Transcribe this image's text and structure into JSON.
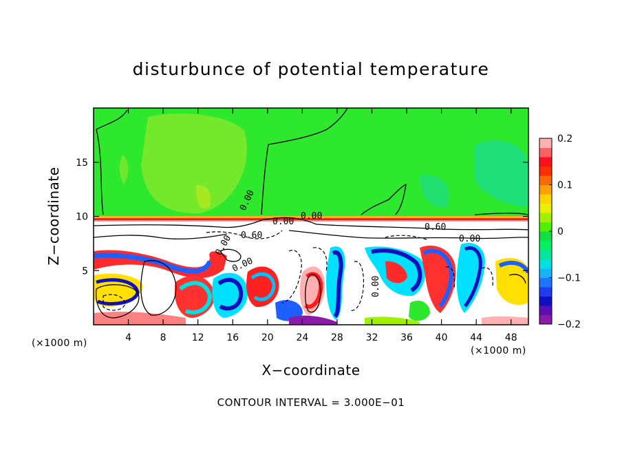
{
  "chart_data": {
    "type": "heatmap",
    "title": "disturbunce of potential temperature",
    "xlabel": "X−coordinate",
    "ylabel": "Z−coordinate",
    "x_unit": "(×1000 m)",
    "footnote": "CONTOUR INTERVAL = 3.000E−01",
    "xlim": [
      0,
      50
    ],
    "ylim": [
      0,
      20
    ],
    "x_ticks": [
      4,
      8,
      12,
      16,
      20,
      24,
      28,
      32,
      36,
      40,
      44,
      48
    ],
    "y_ticks": [
      5,
      10,
      15
    ],
    "colorbar": {
      "range": [
        -0.2,
        0.2
      ],
      "tick_labels": [
        "0.2",
        "0.1",
        "0",
        "−0.1",
        "−0.2"
      ],
      "tick_values": [
        0.2,
        0.1,
        0,
        -0.1,
        -0.2
      ],
      "colors": [
        "#8b1aa8",
        "#5a0fb5",
        "#1010c0",
        "#1e3cf0",
        "#1e78ff",
        "#14b4ff",
        "#00e0e0",
        "#00e6a0",
        "#00f060",
        "#10e040",
        "#50f000",
        "#a0f000",
        "#e8f000",
        "#ffd200",
        "#ffa000",
        "#ff6a00",
        "#ff3000",
        "#ff1020",
        "#ff6060",
        "#ffb0b0"
      ]
    },
    "contour_labels": [
      "0.00",
      "0.00",
      "0.00",
      "0.00",
      "0.00",
      "0.00",
      "0.00",
      "0.60",
      "0.60"
    ],
    "description_colors": {
      "upper_layer": "#2ee82e",
      "inversion": "#ff1a1a"
    }
  }
}
